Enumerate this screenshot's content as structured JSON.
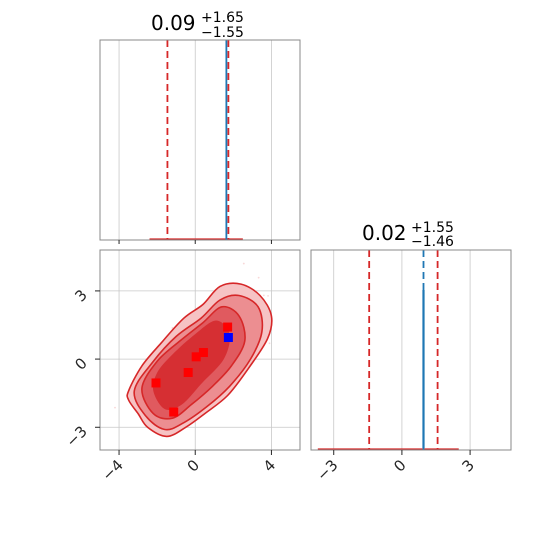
{
  "chart_data": {
    "type": "corner",
    "params": [
      "p1",
      "p2"
    ],
    "axis_ranges": {
      "p1": [
        -5,
        5.5
      ],
      "p2": [
        -4,
        4.8
      ]
    },
    "grid": true,
    "titles": [
      {
        "param": "p1",
        "median": "0.09",
        "plus": "+1.65",
        "minus": "−1.55"
      },
      {
        "param": "p2",
        "median": "0.02",
        "plus": "+1.55",
        "minus": "−1.46"
      }
    ],
    "ticks": {
      "p1": {
        "values": [
          -4,
          0,
          4
        ],
        "labels": [
          "−4",
          "0",
          "4"
        ]
      },
      "p2": {
        "values": [
          -3,
          0,
          3
        ],
        "labels": [
          "−3",
          "0",
          "3"
        ]
      }
    },
    "marginals": [
      {
        "param": "p1",
        "quantiles": [
          -1.46,
          1.74
        ],
        "truth": 1.74,
        "range_line": [
          -2.4,
          2.5
        ]
      },
      {
        "param": "p2",
        "quantiles": [
          -1.44,
          1.57
        ],
        "truth": 0.95,
        "range_line": [
          -3.7,
          2.5
        ]
      }
    ],
    "contour": {
      "outer": [
        [
          -3.5,
          -1.4
        ],
        [
          -3.5,
          -1.8
        ],
        [
          -3.0,
          -2.4
        ],
        [
          -2.5,
          -3.0
        ],
        [
          -1.5,
          -3.4
        ],
        [
          -0.5,
          -3.0
        ],
        [
          0.5,
          -2.4
        ],
        [
          1.7,
          -1.6
        ],
        [
          2.8,
          -0.4
        ],
        [
          3.8,
          0.9
        ],
        [
          4.0,
          1.9
        ],
        [
          3.4,
          2.8
        ],
        [
          2.4,
          3.3
        ],
        [
          1.3,
          3.2
        ],
        [
          0.4,
          2.4
        ],
        [
          -0.6,
          1.8
        ],
        [
          -1.8,
          0.7
        ],
        [
          -2.8,
          -0.3
        ]
      ],
      "level2": [
        [
          -3.2,
          -1.4
        ],
        [
          -2.6,
          -2.5
        ],
        [
          -1.6,
          -3.1
        ],
        [
          -0.6,
          -2.8
        ],
        [
          0.6,
          -2.1
        ],
        [
          1.8,
          -1.2
        ],
        [
          2.9,
          0.0
        ],
        [
          3.5,
          1.2
        ],
        [
          3.3,
          2.3
        ],
        [
          2.3,
          2.8
        ],
        [
          1.3,
          2.6
        ],
        [
          0.3,
          1.8
        ],
        [
          -1.0,
          1.0
        ],
        [
          -2.2,
          -0.1
        ]
      ],
      "level3": [
        [
          -2.8,
          -1.3
        ],
        [
          -2.2,
          -2.4
        ],
        [
          -1.2,
          -2.6
        ],
        [
          -0.2,
          -2.0
        ],
        [
          0.9,
          -1.2
        ],
        [
          1.9,
          -0.3
        ],
        [
          2.6,
          0.8
        ],
        [
          2.3,
          1.9
        ],
        [
          1.4,
          2.3
        ],
        [
          0.4,
          1.6
        ],
        [
          -0.8,
          0.8
        ],
        [
          -2.0,
          -0.1
        ]
      ],
      "core": [
        [
          -2.2,
          -1.4
        ],
        [
          -1.6,
          -2.2
        ],
        [
          -0.7,
          -2.0
        ],
        [
          0.3,
          -1.1
        ],
        [
          1.5,
          0.0
        ],
        [
          1.8,
          1.1
        ],
        [
          1.1,
          1.7
        ],
        [
          0.0,
          1.1
        ],
        [
          -1.2,
          0.2
        ],
        [
          -2.0,
          -0.6
        ]
      ]
    },
    "truth_points": [
      {
        "x": 1.74,
        "y": 0.95,
        "color": "#0000ff"
      }
    ],
    "extra_points": [
      {
        "x": -2.06,
        "y": -1.05,
        "color": "#ff0000"
      },
      {
        "x": -1.13,
        "y": -2.33,
        "color": "#ff0000"
      },
      {
        "x": -0.37,
        "y": -0.59,
        "color": "#ff0000"
      },
      {
        "x": 0.05,
        "y": 0.1,
        "color": "#ff0000"
      },
      {
        "x": 0.43,
        "y": 0.29,
        "color": "#ff0000"
      },
      {
        "x": 1.7,
        "y": 1.41,
        "color": "#ff0000"
      }
    ],
    "colors": {
      "contour_fill_outer": "#f6c3c4",
      "contour_fill_l2": "#ec8e91",
      "contour_fill_l3": "#e05a5f",
      "contour_fill_core": "#d62f33",
      "contour_line": "#d62728",
      "quantile": "#d62728",
      "truth": "#1f77b4",
      "grid": "#c8c8c8",
      "frame": "#888888",
      "text": "#262626"
    }
  }
}
